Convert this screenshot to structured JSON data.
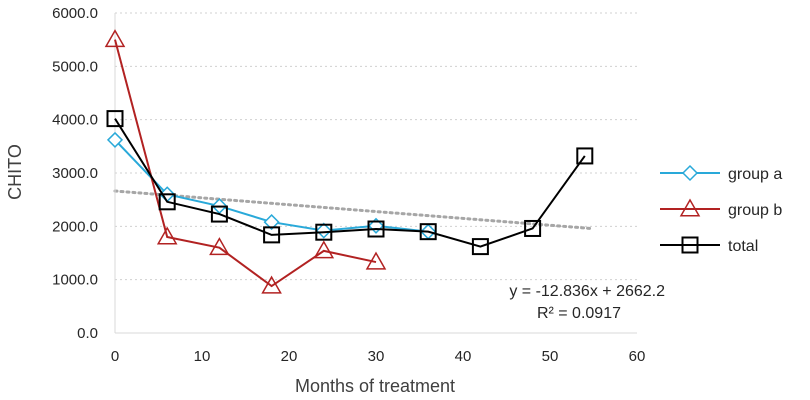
{
  "chart_data": {
    "type": "scatter",
    "title": "",
    "xlabel": "Months of treatment",
    "ylabel": "CHITO",
    "xlim": [
      0,
      60
    ],
    "ylim": [
      0,
      6000
    ],
    "x_ticks": [
      0,
      10,
      20,
      30,
      40,
      50,
      60
    ],
    "y_ticks": [
      0,
      1000,
      2000,
      3000,
      4000,
      5000,
      6000
    ],
    "x_tick_labels": [
      "0",
      "10",
      "20",
      "30",
      "40",
      "50",
      "60"
    ],
    "y_tick_labels": [
      "0.0",
      "1000.0",
      "2000.0",
      "3000.0",
      "4000.0",
      "5000.0",
      "6000.0"
    ],
    "grid": "horizontal dotted",
    "legend_position": "right",
    "series": [
      {
        "name": "group a",
        "color": "#29a9d9",
        "marker": "diamond",
        "x": [
          0,
          6,
          12,
          18,
          24,
          30,
          36
        ],
        "y": [
          3620,
          2600,
          2380,
          2080,
          1920,
          2010,
          1900
        ]
      },
      {
        "name": "group b",
        "color": "#b22222",
        "marker": "triangle",
        "x": [
          0,
          6,
          12,
          18,
          24,
          30
        ],
        "y": [
          5500,
          1800,
          1600,
          880,
          1540,
          1330
        ]
      },
      {
        "name": "total",
        "color": "#000000",
        "marker": "square",
        "x": [
          0,
          6,
          12,
          18,
          24,
          30,
          36,
          42,
          48,
          54
        ],
        "y": [
          4020,
          2460,
          2230,
          1840,
          1890,
          1950,
          1900,
          1620,
          1960,
          3320
        ]
      }
    ],
    "trendline": {
      "color": "#a6a6a6",
      "style": "dotted",
      "slope": -12.836,
      "intercept": 2662.2,
      "x_range": [
        0,
        55
      ],
      "equation": "y = -12.836x + 2662.2",
      "r_squared": "R² = 0.0917"
    }
  }
}
